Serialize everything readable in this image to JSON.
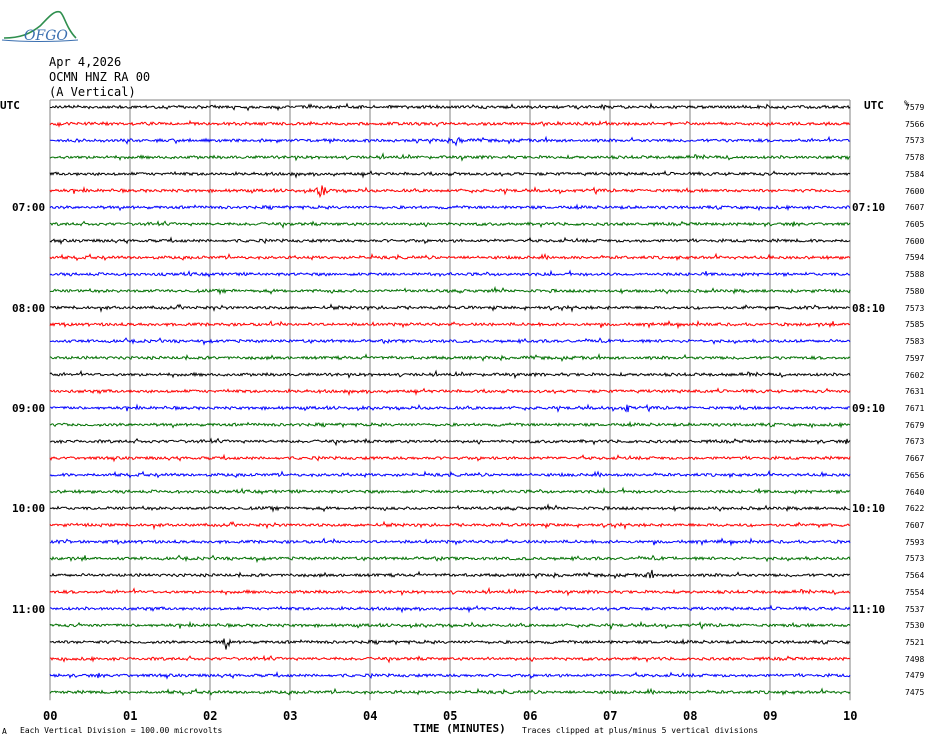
{
  "header": {
    "logo_text": "OFGO",
    "date": "Apr 4,2026",
    "station": "OCMN HNZ RA 00",
    "component": "(A Vertical)"
  },
  "labels": {
    "left_utc": "UTC",
    "right_utc": "UTC",
    "right_unit": "%"
  },
  "footer": {
    "left_small": "A",
    "division_note": "Each Vertical Division =  100.00 microvolts",
    "x_title": "TIME (MINUTES)",
    "clip_note": "Traces clipped at plus/minus 5 vertical divisions"
  },
  "colors": {
    "trace_cycle": [
      "#000000",
      "#ff0000",
      "#0000ff",
      "#007000"
    ],
    "grid": "#808080"
  },
  "chart_data": {
    "type": "line",
    "title": "",
    "xlabel": "TIME (MINUTES)",
    "ylabel": "",
    "x_ticks": [
      "00",
      "01",
      "02",
      "03",
      "04",
      "05",
      "06",
      "07",
      "08",
      "09",
      "10"
    ],
    "xlim": [
      0,
      10
    ],
    "trace_count": 36,
    "minutes_per_trace": 10,
    "left_time_labels": [
      {
        "row": 6,
        "text": "07:00"
      },
      {
        "row": 12,
        "text": "08:00"
      },
      {
        "row": 18,
        "text": "09:00"
      },
      {
        "row": 24,
        "text": "10:00"
      },
      {
        "row": 30,
        "text": "11:00"
      }
    ],
    "right_time_labels": [
      {
        "row": 6,
        "text": "07:10"
      },
      {
        "row": 12,
        "text": "08:10"
      },
      {
        "row": 18,
        "text": "09:10"
      },
      {
        "row": 24,
        "text": "10:10"
      },
      {
        "row": 30,
        "text": "11:10"
      }
    ],
    "trace_values": [
      7579,
      7566,
      7573,
      7578,
      7584,
      7600,
      7607,
      7605,
      7600,
      7594,
      7588,
      7580,
      7573,
      7585,
      7583,
      7597,
      7602,
      7631,
      7671,
      7679,
      7673,
      7667,
      7656,
      7640,
      7622,
      7607,
      7593,
      7573,
      7564,
      7554,
      7537,
      7530,
      7521,
      7498,
      7479,
      7475
    ],
    "events": [
      {
        "row": 2,
        "minute": 5.1,
        "amplitude": 3
      },
      {
        "row": 5,
        "minute": 3.4,
        "amplitude": 5
      },
      {
        "row": 18,
        "minute": 7.2,
        "amplitude": 3
      },
      {
        "row": 32,
        "minute": 2.2,
        "amplitude": 3
      },
      {
        "row": 28,
        "minute": 7.5,
        "amplitude": 2
      }
    ],
    "grid": true
  }
}
